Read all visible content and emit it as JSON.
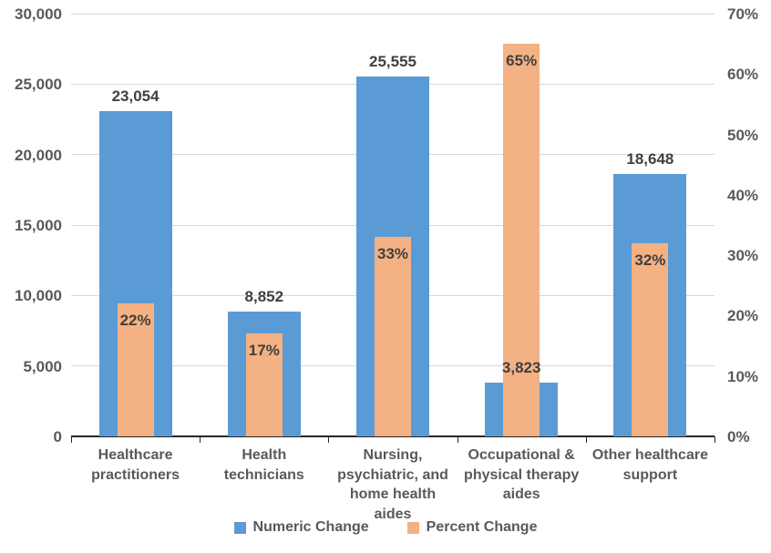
{
  "chart_data": {
    "type": "bar",
    "title": "",
    "categories": [
      "Healthcare practitioners",
      "Health technicians",
      "Nursing, psychiatric, and home health aides",
      "Occupational & physical therapy aides",
      "Other healthcare support"
    ],
    "series": [
      {
        "name": "Numeric Change",
        "axis": "left",
        "color": "#5b9bd5",
        "values": [
          23054,
          8852,
          25555,
          3823,
          18648
        ],
        "labels": [
          "23,054",
          "8,852",
          "25,555",
          "3,823",
          "18,648"
        ]
      },
      {
        "name": "Percent Change",
        "axis": "right",
        "color": "#f4b183",
        "values": [
          22,
          17,
          33,
          65,
          32
        ],
        "labels": [
          "22%",
          "17%",
          "33%",
          "65%",
          "32%"
        ]
      }
    ],
    "left_axis": {
      "min": 0,
      "max": 30000,
      "step": 5000,
      "tick_labels": [
        "0",
        "5,000",
        "10,000",
        "15,000",
        "20,000",
        "25,000",
        "30,000"
      ]
    },
    "right_axis": {
      "min": 0,
      "max": 70,
      "step": 10,
      "tick_labels": [
        "0%",
        "10%",
        "20%",
        "30%",
        "40%",
        "50%",
        "60%",
        "70%"
      ]
    },
    "grid": "horizontal",
    "legend_position": "bottom",
    "colors": {
      "gridline": "#d9d9d9",
      "axis_line": "#262626",
      "axis_text": "#595959",
      "data_label_text": "#404040"
    }
  }
}
